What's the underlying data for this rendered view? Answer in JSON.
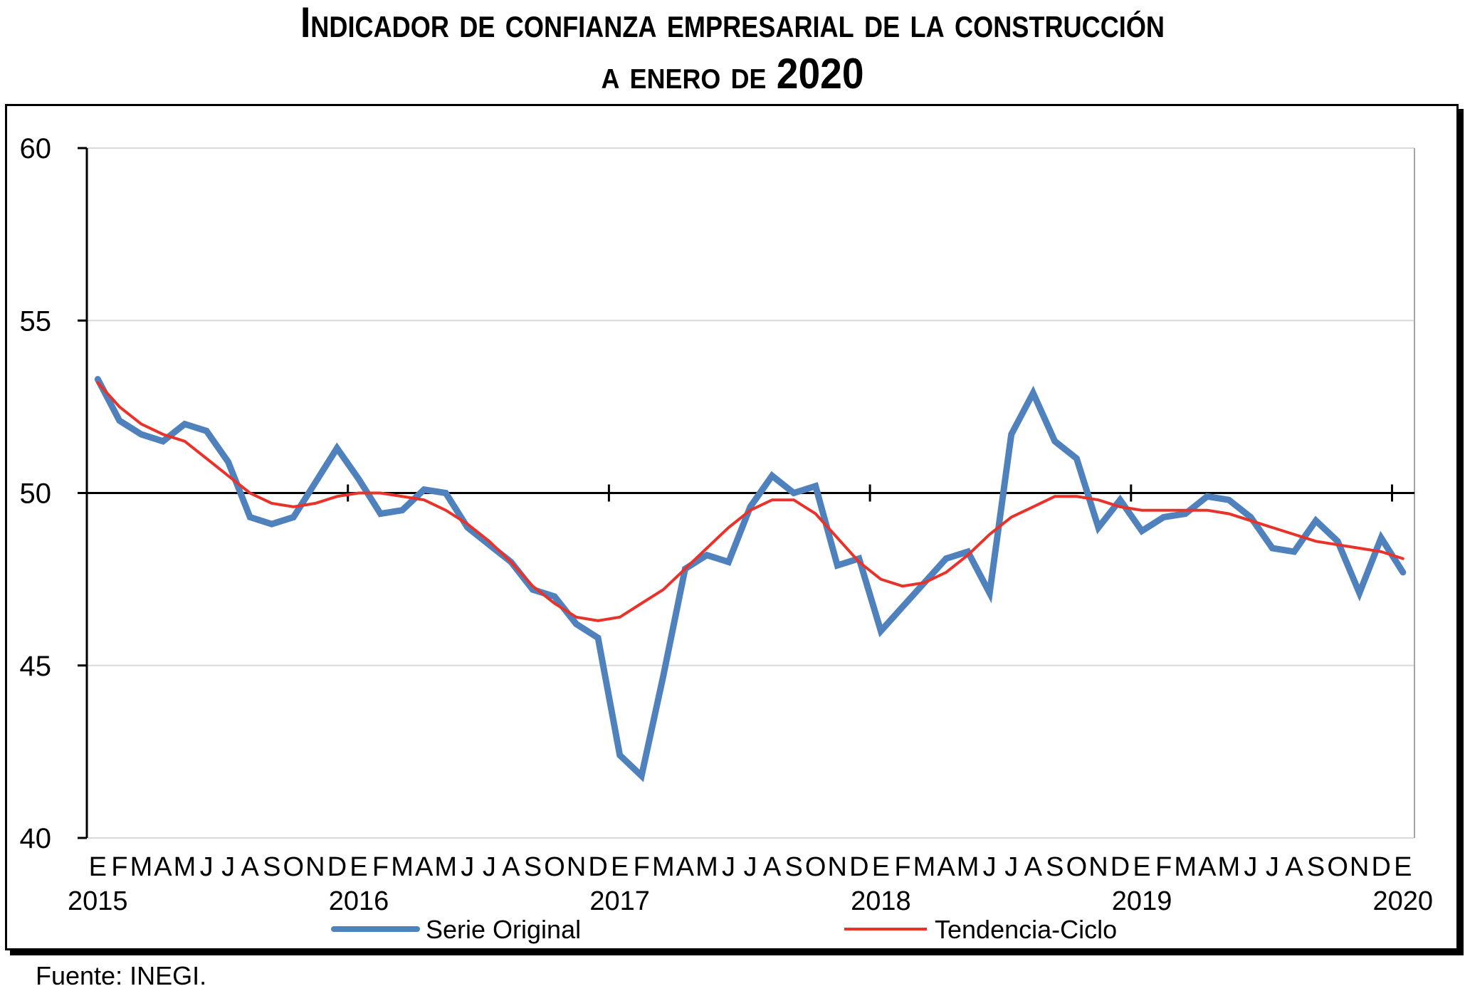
{
  "title": {
    "line1": "Indicador de confianza empresarial de la construcción",
    "line2_prefix": "a enero de ",
    "line2_year": "2020"
  },
  "source": "Fuente: INEGI.",
  "colors": {
    "serie_original": "#4F81BD",
    "tendencia_ciclo": "#E8322A",
    "axis": "#000000",
    "grid": "#D9D9D9"
  },
  "chart_data": {
    "type": "line",
    "title": "Indicador de confianza empresarial de la construcción a enero de 2020",
    "xlabel": "",
    "ylabel": "",
    "ylim": [
      40,
      60
    ],
    "yticks": [
      "40",
      "45",
      "50",
      "55",
      "60"
    ],
    "grid": true,
    "x_axis_crosses_at": 50,
    "legend_position": "bottom",
    "month_labels": [
      "E",
      "F",
      "M",
      "A",
      "M",
      "J",
      "J",
      "A",
      "S",
      "O",
      "N",
      "D",
      "E",
      "F",
      "M",
      "A",
      "M",
      "J",
      "J",
      "A",
      "S",
      "O",
      "N",
      "D",
      "E",
      "F",
      "M",
      "A",
      "M",
      "J",
      "J",
      "A",
      "S",
      "O",
      "N",
      "D",
      "E",
      "F",
      "M",
      "A",
      "M",
      "J",
      "J",
      "A",
      "S",
      "O",
      "N",
      "D",
      "E",
      "F",
      "M",
      "A",
      "M",
      "J",
      "J",
      "A",
      "S",
      "O",
      "N",
      "D",
      "E"
    ],
    "year_labels": [
      {
        "label": "2015",
        "month_index": 0
      },
      {
        "label": "2016",
        "month_index": 12
      },
      {
        "label": "2017",
        "month_index": 24
      },
      {
        "label": "2018",
        "month_index": 36
      },
      {
        "label": "2019",
        "month_index": 48
      },
      {
        "label": "2020",
        "month_index": 60
      }
    ],
    "series": [
      {
        "name": "Serie Original",
        "color": "#4F81BD",
        "values": [
          53.3,
          52.1,
          51.7,
          51.5,
          52.0,
          51.8,
          50.9,
          49.3,
          49.1,
          49.3,
          50.3,
          51.3,
          50.4,
          49.4,
          49.5,
          50.1,
          50.0,
          49.0,
          48.5,
          48.0,
          47.2,
          47.0,
          46.2,
          45.8,
          42.4,
          41.8,
          44.7,
          47.8,
          48.2,
          48.0,
          49.6,
          50.5,
          50.0,
          50.2,
          47.9,
          48.1,
          46.0,
          46.7,
          47.4,
          48.1,
          48.3,
          47.1,
          51.7,
          52.9,
          51.5,
          51.0,
          49.0,
          49.8,
          48.9,
          49.3,
          49.4,
          49.9,
          49.8,
          49.3,
          48.4,
          48.3,
          49.2,
          48.6,
          47.1,
          48.7,
          47.7
        ]
      },
      {
        "name": "Tendencia-Ciclo",
        "color": "#E8322A",
        "values": [
          53.2,
          52.5,
          52.0,
          51.7,
          51.5,
          51.0,
          50.5,
          50.0,
          49.7,
          49.6,
          49.7,
          49.9,
          50.0,
          50.0,
          49.9,
          49.8,
          49.5,
          49.1,
          48.6,
          48.0,
          47.3,
          46.8,
          46.4,
          46.3,
          46.4,
          46.8,
          47.2,
          47.8,
          48.4,
          49.0,
          49.5,
          49.8,
          49.8,
          49.4,
          48.7,
          48.0,
          47.5,
          47.3,
          47.4,
          47.7,
          48.2,
          48.8,
          49.3,
          49.6,
          49.9,
          49.9,
          49.8,
          49.6,
          49.5,
          49.5,
          49.5,
          49.5,
          49.4,
          49.2,
          49.0,
          48.8,
          48.6,
          48.5,
          48.4,
          48.3,
          48.1
        ]
      }
    ]
  }
}
